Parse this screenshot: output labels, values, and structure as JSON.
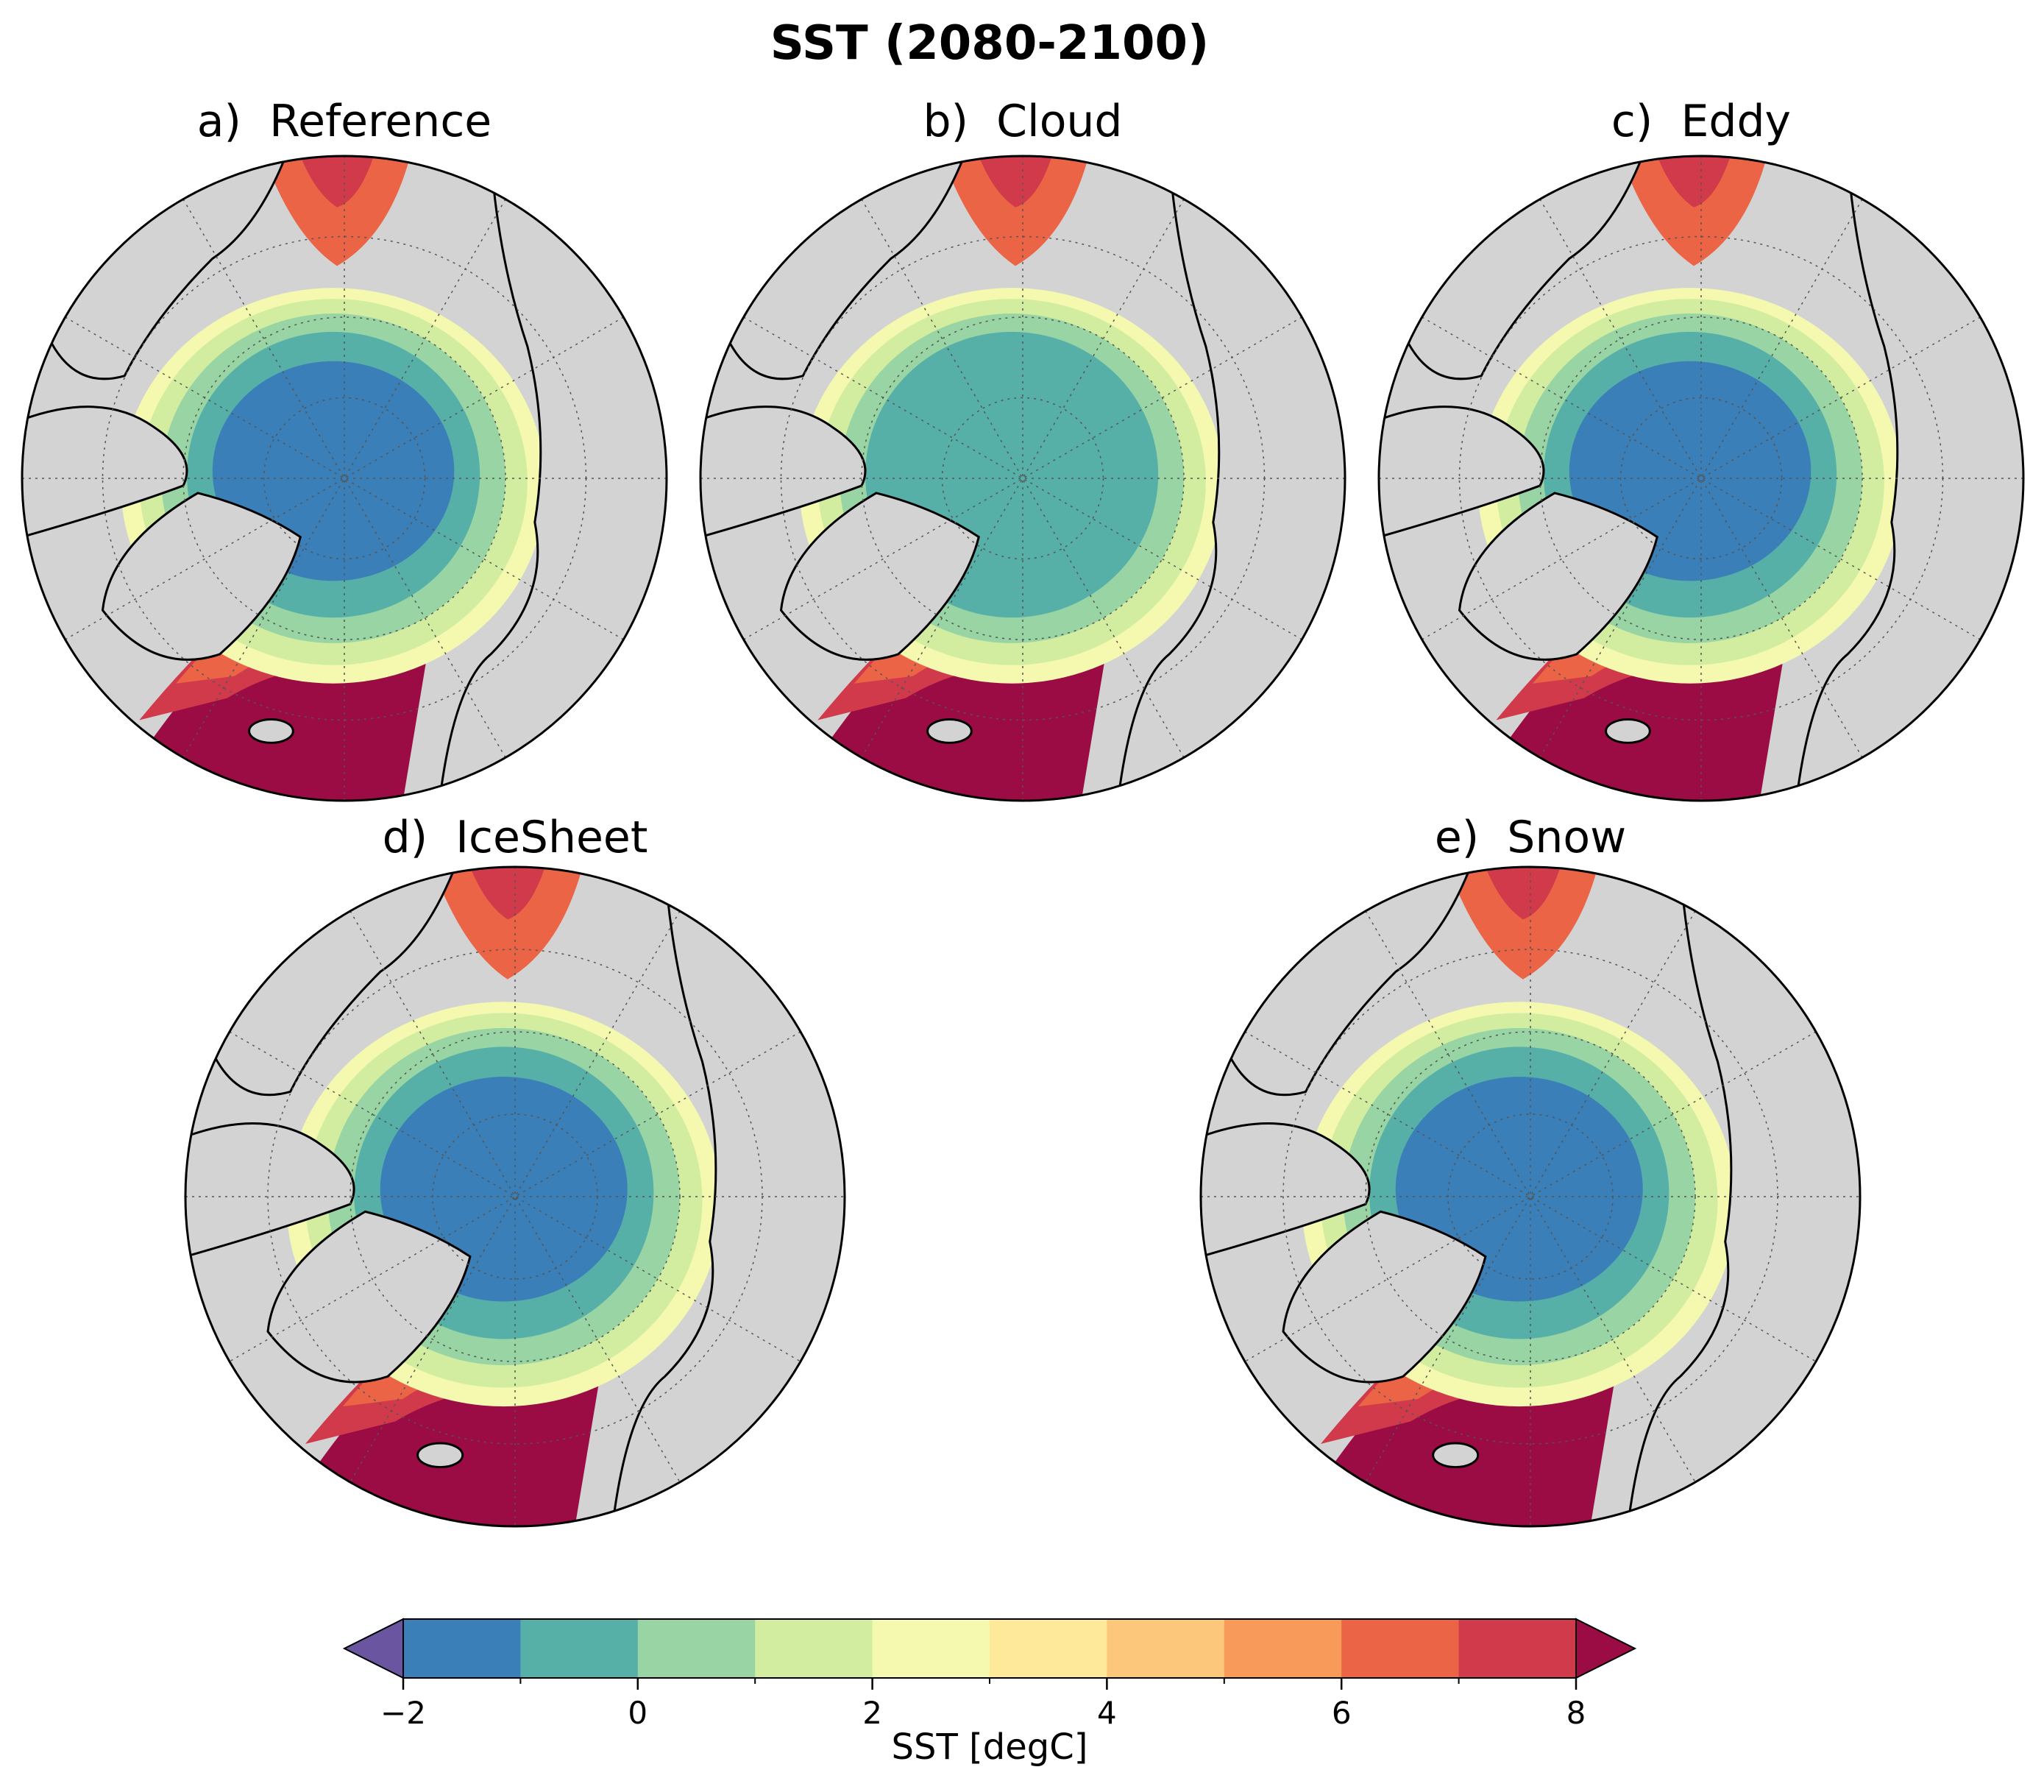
{
  "figure": {
    "title": "SST (2080-2100)"
  },
  "panels": [
    {
      "id": "a",
      "letter": "a)",
      "name": "Reference",
      "pole_core": "#3a7fb8"
    },
    {
      "id": "b",
      "letter": "b)",
      "name": "Cloud",
      "pole_core": "#56b0a8"
    },
    {
      "id": "c",
      "letter": "c)",
      "name": "Eddy",
      "pole_core": "#3a7fb8"
    },
    {
      "id": "d",
      "letter": "d)",
      "name": "IceSheet",
      "pole_core": "#3a7fb8"
    },
    {
      "id": "e",
      "letter": "e)",
      "name": "Snow",
      "pole_core": "#3a7fb8"
    }
  ],
  "colorbar": {
    "label": "SST [degC]",
    "ticks": [
      -2,
      0,
      2,
      4,
      6,
      8
    ],
    "tick_labels": [
      "−2",
      "0",
      "2",
      "4",
      "6",
      "8"
    ],
    "levels": [
      -2,
      -1,
      0,
      1,
      2,
      3,
      4,
      5,
      6,
      7,
      8
    ],
    "colors": [
      "#3a7fb8",
      "#56b0a8",
      "#98d4a4",
      "#d2eda0",
      "#f5f9b0",
      "#fee99a",
      "#fcc77b",
      "#f89a59",
      "#ec6446",
      "#d03a4a"
    ],
    "under_color": "#6a55a0",
    "over_color": "#9b0b44",
    "extend": "both"
  },
  "colors": {
    "land": "#d3d3d3",
    "coast": "#000000"
  }
}
